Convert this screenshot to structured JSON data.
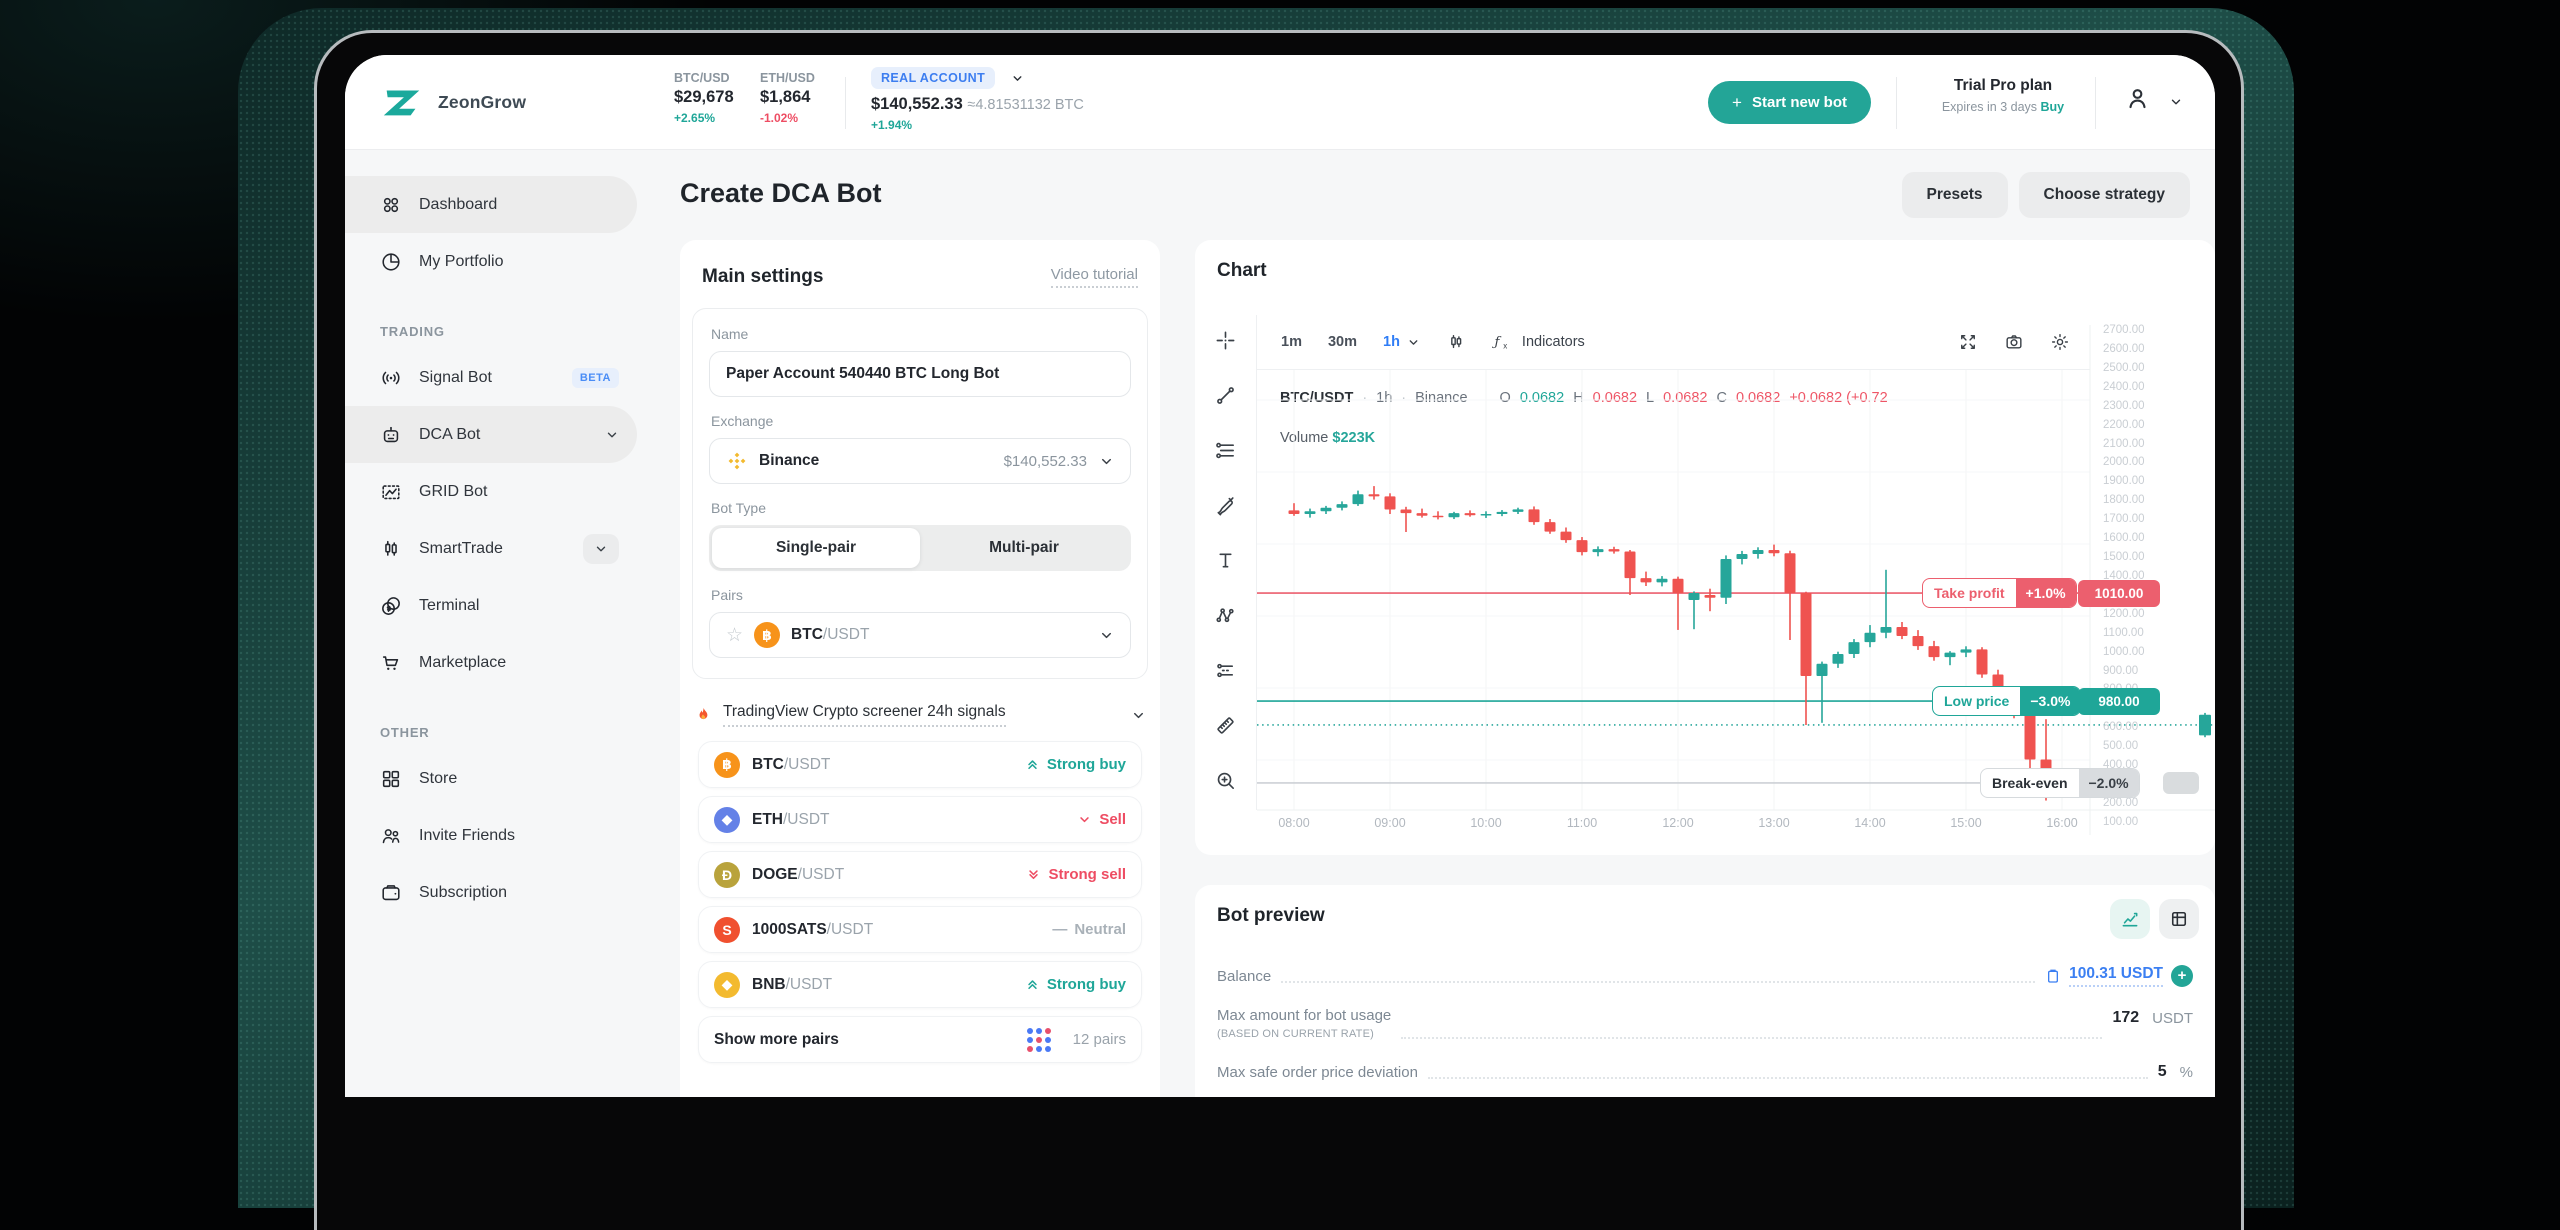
{
  "colors": {
    "teal": "#1fa698",
    "red": "#ee4d63",
    "blue": "#3d7ef0",
    "candle_up": "#26a69a",
    "candle_down": "#ef5350"
  },
  "header": {
    "brand": "ZeonGrow",
    "tickers": [
      {
        "pair": "BTC/USD",
        "price": "$29,678",
        "change": "+2.65%",
        "dir": "up"
      },
      {
        "pair": "ETH/USD",
        "price": "$1,864",
        "change": "-1.02%",
        "dir": "down"
      }
    ],
    "account": {
      "badge": "REAL ACCOUNT",
      "balance": "$140,552.33",
      "btc_equiv": "≈4.81531132 BTC",
      "change": "+1.94%"
    },
    "start_new_bot_label": "Start new bot",
    "plan": {
      "title": "Trial Pro plan",
      "expires": "Expires in 3 days",
      "buy": "Buy"
    }
  },
  "sidebar": {
    "top": [
      {
        "label": "Dashboard",
        "icon": "dashboard",
        "active": true
      },
      {
        "label": "My Portfolio",
        "icon": "portfolio"
      }
    ],
    "sections": [
      {
        "label": "TRADING",
        "items": [
          {
            "label": "Signal Bot",
            "icon": "signal",
            "badge": "BETA"
          },
          {
            "label": "DCA Bot",
            "icon": "robot",
            "chevron": true,
            "active": true
          },
          {
            "label": "GRID Bot",
            "icon": "grid"
          },
          {
            "label": "SmartTrade",
            "icon": "smarttrade",
            "chevron_boxed": true
          },
          {
            "label": "Terminal",
            "icon": "terminal"
          },
          {
            "label": "Marketplace",
            "icon": "cart"
          }
        ]
      },
      {
        "label": "OTHER",
        "items": [
          {
            "label": "Store",
            "icon": "store"
          },
          {
            "label": "Invite Friends",
            "icon": "invite"
          },
          {
            "label": "Subscription",
            "icon": "wallet"
          }
        ]
      }
    ]
  },
  "page": {
    "title": "Create DCA Bot",
    "presets": "Presets",
    "choose_strategy": "Choose strategy"
  },
  "main_settings": {
    "heading": "Main settings",
    "video_tutorial": "Video tutorial",
    "name_label": "Name",
    "name_value": "Paper Account 540440 BTC Long Bot",
    "exchange_label": "Exchange",
    "exchange_name": "Binance",
    "exchange_balance": "$140,552.33",
    "bot_type_label": "Bot Type",
    "bot_types": [
      "Single-pair",
      "Multi-pair"
    ],
    "bot_type_active": 0,
    "pairs_label": "Pairs",
    "pair_base": "BTC",
    "pair_quote": "/USDT"
  },
  "signals": {
    "title": "TradingView Crypto screener 24h signals",
    "rows": [
      {
        "base": "BTC",
        "quote": "/USDT",
        "bg": "#f7931a",
        "glyph": "฿",
        "signal": "Strong buy",
        "type": "strong-buy"
      },
      {
        "base": "ETH",
        "quote": "/USDT",
        "bg": "#6481e7",
        "glyph": "◆",
        "signal": "Sell",
        "type": "sell"
      },
      {
        "base": "DOGE",
        "quote": "/USDT",
        "bg": "#b9a33c",
        "glyph": "Ð",
        "signal": "Strong sell",
        "type": "strong-sell"
      },
      {
        "base": "1000SATS",
        "quote": "/USDT",
        "bg": "#f0502f",
        "glyph": "S",
        "signal": "Neutral",
        "type": "neutral"
      },
      {
        "base": "BNB",
        "quote": "/USDT",
        "bg": "#f3ba2f",
        "glyph": "◆",
        "signal": "Strong buy",
        "type": "strong-buy"
      }
    ],
    "show_more": "Show more pairs",
    "pairs_count": "12 pairs",
    "dot_colors": [
      "#4a79f5",
      "#4a79f5",
      "#e8506c",
      "#4a79f5",
      "#e8506c",
      "#4a79f5",
      "#e8506c",
      "#4a79f5",
      "#4a79f5"
    ]
  },
  "chart": {
    "title": "Chart",
    "timeframes": [
      "1m",
      "30m"
    ],
    "selected_timeframe": "1h",
    "indicators_label": "Indicators",
    "symbol_line": {
      "symbol": "BTC/USDT",
      "timeframe": "1h",
      "exchange": "Binance",
      "o": "0.0682",
      "h": "0.0682",
      "l": "0.0682",
      "c": "0.0682",
      "change": "+0.0682 (+0.72"
    },
    "volume_label": "Volume",
    "volume_value": "$223K",
    "tools": [
      "crosshair",
      "trend-line",
      "fib-retracement",
      "brush",
      "text",
      "xabcd-pattern",
      "long-position",
      "ruler",
      "zoom-in"
    ],
    "chart_data": {
      "type": "candlestick",
      "x_labels": [
        "08:00",
        "09:00",
        "10:00",
        "11:00",
        "12:00",
        "13:00",
        "14:00",
        "15:00",
        "16:00"
      ],
      "y_axis": {
        "max": 2700,
        "min": 100,
        "step": 100
      },
      "lines": [
        {
          "id": "take_profit",
          "label": "Take profit",
          "pct": "+1.0%",
          "tag": "1010.00",
          "level": 1261,
          "style": "red"
        },
        {
          "id": "low_price",
          "label": "Low price",
          "pct": "−3.0%",
          "tag": "980.00",
          "level": 661,
          "style": "teal"
        },
        {
          "id": "break_even",
          "label": "Break-even",
          "pct": "−2.0%",
          "tag": "",
          "level": 206,
          "style": "grey"
        },
        {
          "id": "entry",
          "label": "",
          "pct": "",
          "tag": "",
          "level": 528,
          "style": "dotted"
        }
      ],
      "candles": [
        [
          1720,
          1760,
          1690,
          1700
        ],
        [
          1700,
          1730,
          1680,
          1715
        ],
        [
          1715,
          1745,
          1700,
          1735
        ],
        [
          1735,
          1770,
          1720,
          1755
        ],
        [
          1755,
          1830,
          1745,
          1810
        ],
        [
          1810,
          1855,
          1780,
          1798
        ],
        [
          1798,
          1815,
          1700,
          1725
        ],
        [
          1725,
          1740,
          1600,
          1705
        ],
        [
          1705,
          1730,
          1680,
          1690
        ],
        [
          1690,
          1715,
          1670,
          1682
        ],
        [
          1682,
          1712,
          1672,
          1705
        ],
        [
          1705,
          1720,
          1685,
          1693
        ],
        [
          1693,
          1715,
          1678,
          1700
        ],
        [
          1700,
          1722,
          1688,
          1712
        ],
        [
          1712,
          1735,
          1700,
          1726
        ],
        [
          1726,
          1742,
          1640,
          1655
        ],
        [
          1655,
          1672,
          1590,
          1602
        ],
        [
          1602,
          1625,
          1540,
          1555
        ],
        [
          1555,
          1572,
          1470,
          1488
        ],
        [
          1488,
          1520,
          1465,
          1505
        ],
        [
          1505,
          1518,
          1480,
          1492
        ],
        [
          1492,
          1500,
          1250,
          1344
        ],
        [
          1344,
          1380,
          1300,
          1320
        ],
        [
          1320,
          1355,
          1298,
          1340
        ],
        [
          1340,
          1352,
          1056,
          1261
        ],
        [
          1222,
          1270,
          1060,
          1261
        ],
        [
          1250,
          1285,
          1160,
          1235
        ],
        [
          1235,
          1470,
          1200,
          1450
        ],
        [
          1450,
          1495,
          1420,
          1478
        ],
        [
          1478,
          1515,
          1452,
          1500
        ],
        [
          1500,
          1530,
          1465,
          1482
        ],
        [
          1482,
          1496,
          1000,
          1261
        ],
        [
          1261,
          1268,
          528,
          800
        ],
        [
          800,
          880,
          540,
          868
        ],
        [
          868,
          935,
          845,
          922
        ],
        [
          922,
          1005,
          900,
          988
        ],
        [
          988,
          1083,
          960,
          1040
        ],
        [
          1040,
          1390,
          1010,
          1072
        ],
        [
          1072,
          1100,
          1005,
          1022
        ],
        [
          1022,
          1055,
          945,
          966
        ],
        [
          966,
          995,
          885,
          905
        ],
        [
          905,
          938,
          860,
          930
        ],
        [
          930,
          965,
          905,
          948
        ],
        [
          948,
          960,
          790,
          808
        ],
        [
          808,
          835,
          700,
          718
        ],
        [
          718,
          742,
          565,
          590
        ],
        [
          590,
          612,
          170,
          336
        ],
        [
          336,
          560,
          108,
          140
        ]
      ],
      "current_candle": [
        470,
        595,
        460,
        585
      ]
    }
  },
  "bot_preview": {
    "title": "Bot preview",
    "balance": {
      "label": "Balance",
      "value": "100.31 USDT"
    },
    "max_amount": {
      "label": "Max amount for bot usage",
      "sub": "(BASED ON CURRENT RATE)",
      "value": "172",
      "unit": "USDT"
    },
    "max_deviation": {
      "label": "Max safe order price deviation",
      "value": "5",
      "unit": "%"
    }
  }
}
